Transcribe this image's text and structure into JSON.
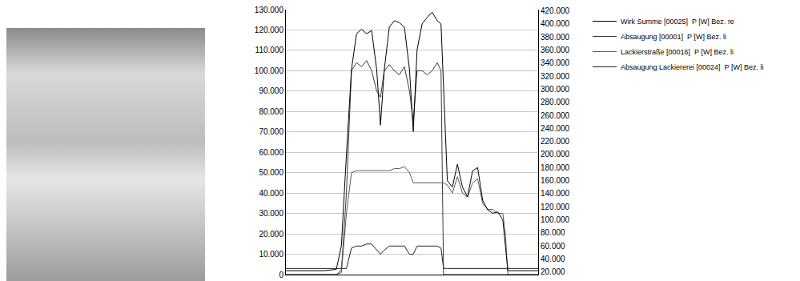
{
  "chart_data": {
    "type": "line",
    "x": [
      0,
      5,
      10,
      15,
      20,
      22,
      24,
      26,
      28,
      30,
      32,
      34,
      36,
      37.5,
      39,
      41,
      43,
      45,
      47,
      49,
      50.5,
      52,
      54,
      56,
      58,
      60,
      61.5,
      62.5,
      64,
      66,
      68,
      70,
      72,
      74,
      76,
      78,
      80,
      82,
      84,
      86,
      87,
      88,
      90,
      95,
      100
    ],
    "xlim": [
      0,
      100
    ],
    "ylim": [
      0,
      130000
    ],
    "yticks": [
      0,
      {
        "value": 10000,
        "label": "10.000"
      },
      {
        "value": 20000,
        "label": "20.000"
      },
      {
        "value": 30000,
        "label": "30.000"
      },
      {
        "value": 40000,
        "label": "40.000"
      },
      {
        "value": 50000,
        "label": "50.000"
      },
      {
        "value": 60000,
        "label": "60.000"
      },
      {
        "value": 70000,
        "label": "70.000"
      },
      {
        "value": 80000,
        "label": "80.000"
      },
      {
        "value": 90000,
        "label": "90.000"
      },
      {
        "value": 100000,
        "label": "100.000"
      },
      {
        "value": 110000,
        "label": "110.000"
      },
      {
        "value": 120000,
        "label": "120.000"
      },
      {
        "value": 130000,
        "label": "130.000"
      }
    ],
    "y2lim": [
      16000,
      422000
    ],
    "y2ticks": [
      {
        "value": 20000,
        "label": "20.000"
      },
      {
        "value": 40000,
        "label": "40.000"
      },
      {
        "value": 60000,
        "label": "60.000"
      },
      {
        "value": 80000,
        "label": "80.000"
      },
      {
        "value": 100000,
        "label": "100.000"
      },
      {
        "value": 120000,
        "label": "120.000"
      },
      {
        "value": 140000,
        "label": "140.000"
      },
      {
        "value": 160000,
        "label": "160.000"
      },
      {
        "value": 180000,
        "label": "180.000"
      },
      {
        "value": 200000,
        "label": "200.000"
      },
      {
        "value": 220000,
        "label": "220.000"
      },
      {
        "value": 240000,
        "label": "240.000"
      },
      {
        "value": 260000,
        "label": "260.000"
      },
      {
        "value": 280000,
        "label": "280.000"
      },
      {
        "value": 300000,
        "label": "300.000"
      },
      {
        "value": 320000,
        "label": "320.000"
      },
      {
        "value": 340000,
        "label": "340.000"
      },
      {
        "value": 360000,
        "label": "360.000"
      },
      {
        "value": 380000,
        "label": "380.000"
      },
      {
        "value": 400000,
        "label": "400.000"
      },
      {
        "value": 420000,
        "label": "420.000"
      }
    ],
    "grid": true,
    "legend": "right",
    "tick_labels": "y",
    "series": [
      {
        "name": "Wirk Summe [00025]  P [W] Bez. re",
        "color": "#000000",
        "axis": "y2",
        "values": [
          22000,
          22000,
          22000,
          22000,
          24000,
          60000,
          200000,
          330000,
          385000,
          392000,
          385000,
          390000,
          330000,
          245000,
          330000,
          395000,
          405000,
          402000,
          395000,
          330000,
          235000,
          360000,
          400000,
          410000,
          418000,
          405000,
          400000,
          300000,
          160000,
          150000,
          185000,
          150000,
          135000,
          175000,
          180000,
          130000,
          115000,
          110000,
          112000,
          100000,
          60000,
          22000,
          22000,
          22000,
          22000
        ]
      },
      {
        "name": "Absaugung [00001]  P [W] Bez. li",
        "color": "#3a3a3a",
        "values": [
          0,
          0,
          0,
          0,
          0,
          2000,
          40000,
          100000,
          104000,
          102000,
          105000,
          100000,
          90000,
          87000,
          100000,
          103000,
          100000,
          98000,
          102000,
          90000,
          75000,
          100000,
          100000,
          98000,
          100000,
          104000,
          100000,
          0,
          0,
          0,
          0,
          0,
          0,
          0,
          0,
          0,
          0,
          0,
          0,
          0,
          0,
          0,
          0,
          0,
          0
        ]
      },
      {
        "name": "Lackierstraße [00016]  P [W] Bez. li",
        "color": "#5a5a5a",
        "values": [
          0,
          0,
          0,
          0,
          0,
          1000,
          30000,
          50000,
          51000,
          51000,
          51000,
          51000,
          51000,
          51000,
          51000,
          51000,
          52000,
          52000,
          53000,
          50000,
          45000,
          45000,
          45000,
          45000,
          45000,
          45000,
          45000,
          45000,
          44000,
          40000,
          48000,
          40000,
          38000,
          45000,
          47000,
          35000,
          32000,
          32000,
          30000,
          30000,
          20000,
          0,
          0,
          0,
          0
        ]
      },
      {
        "name": "Absaugung Lackiererei [00024]  P [W] Bez. li",
        "color": "#222222",
        "values": [
          3000,
          3000,
          3000,
          3000,
          3000,
          3000,
          3000,
          13000,
          14000,
          14000,
          15000,
          15000,
          12000,
          10000,
          12000,
          14000,
          14000,
          14000,
          14000,
          10000,
          10000,
          14000,
          14000,
          14000,
          14000,
          14000,
          13000,
          3000,
          3000,
          3000,
          3000,
          3000,
          3000,
          3000,
          3000,
          3000,
          3000,
          3000,
          3000,
          3000,
          3000,
          3000,
          3000,
          3000,
          3000
        ]
      }
    ]
  }
}
